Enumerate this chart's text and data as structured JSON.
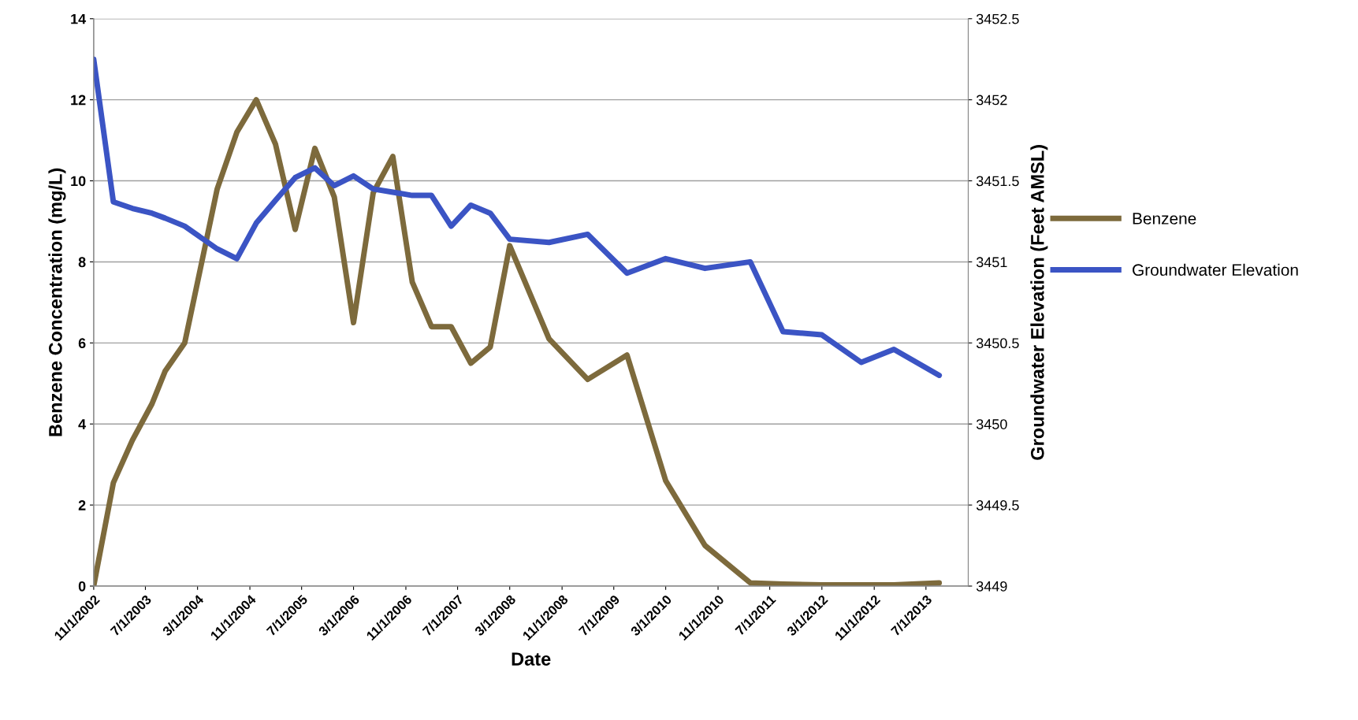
{
  "chart_data": {
    "type": "line",
    "xlabel": "Date",
    "ylabel": "Benzene Concentration (mg/L)",
    "y2label": "Groundwater Elevation (Feet AMSL)",
    "x": [
      "2002-11-01",
      "2003-02-01",
      "2003-05-01",
      "2003-08-01",
      "2003-10-01",
      "2004-01-01",
      "2004-06-01",
      "2004-09-01",
      "2004-12-01",
      "2005-03-01",
      "2005-06-01",
      "2005-09-01",
      "2005-12-01",
      "2006-03-01",
      "2006-06-01",
      "2006-09-01",
      "2006-12-01",
      "2007-03-01",
      "2007-06-01",
      "2007-09-01",
      "2007-12-01",
      "2008-03-01",
      "2008-09-01",
      "2009-03-01",
      "2009-09-01",
      "2010-03-01",
      "2010-09-01",
      "2011-04-01",
      "2011-09-01",
      "2012-03-01",
      "2012-09-01",
      "2013-02-01",
      "2013-09-01"
    ],
    "series": [
      {
        "name": "Benzene",
        "color": "#7d6a3c",
        "values": [
          0,
          2.55,
          3.6,
          4.5,
          5.3,
          6.0,
          9.8,
          11.2,
          12.0,
          10.9,
          8.8,
          10.8,
          9.6,
          6.5,
          9.7,
          10.6,
          7.5,
          6.4,
          6.4,
          5.5,
          5.9,
          8.4,
          6.1,
          5.1,
          5.7,
          2.6,
          1.0,
          0.08,
          0.05,
          0.03,
          0.03,
          0.03,
          0.08
        ]
      },
      {
        "name": "Groundwater Elevation",
        "color": "#3b54c4",
        "axis": "y2",
        "values": [
          3452.25,
          3451.37,
          3451.33,
          3451.3,
          3451.27,
          3451.22,
          3451.08,
          3451.02,
          3451.24,
          3451.38,
          3451.52,
          3451.58,
          3451.47,
          3451.53,
          3451.45,
          3451.43,
          3451.41,
          3451.41,
          3451.22,
          3451.35,
          3451.3,
          3451.14,
          3451.12,
          3451.17,
          3450.93,
          3451.02,
          3450.96,
          3451.0,
          3450.57,
          3450.55,
          3450.38,
          3450.46,
          3450.3
        ]
      }
    ],
    "xlim": [
      "2002-11-01",
      "2014-01-15"
    ],
    "xticks": [
      {
        "value": "2002-11-01",
        "label": "11/1/2002"
      },
      {
        "value": "2003-07-01",
        "label": "7/1/2003"
      },
      {
        "value": "2004-03-01",
        "label": "3/1/2004"
      },
      {
        "value": "2004-11-01",
        "label": "11/1/2004"
      },
      {
        "value": "2005-07-01",
        "label": "7/1/2005"
      },
      {
        "value": "2006-03-01",
        "label": "3/1/2006"
      },
      {
        "value": "2006-11-01",
        "label": "11/1/2006"
      },
      {
        "value": "2007-07-01",
        "label": "7/1/2007"
      },
      {
        "value": "2008-03-01",
        "label": "3/1/2008"
      },
      {
        "value": "2008-11-01",
        "label": "11/1/2008"
      },
      {
        "value": "2009-07-01",
        "label": "7/1/2009"
      },
      {
        "value": "2010-03-01",
        "label": "3/1/2010"
      },
      {
        "value": "2010-11-01",
        "label": "11/1/2010"
      },
      {
        "value": "2011-07-01",
        "label": "7/1/2011"
      },
      {
        "value": "2012-03-01",
        "label": "3/1/2012"
      },
      {
        "value": "2012-11-01",
        "label": "11/1/2012"
      },
      {
        "value": "2013-07-01",
        "label": "7/1/2013"
      }
    ],
    "ylim": [
      0,
      14
    ],
    "yticks": [
      0,
      2,
      4,
      6,
      8,
      10,
      12,
      14
    ],
    "y2lim": [
      3449,
      3452.5
    ],
    "y2ticks": [
      3449,
      3449.5,
      3450,
      3450.5,
      3451,
      3451.5,
      3452,
      3452.5
    ],
    "grid": "y",
    "legend": "right",
    "marker": "none",
    "line_style": "solid"
  }
}
